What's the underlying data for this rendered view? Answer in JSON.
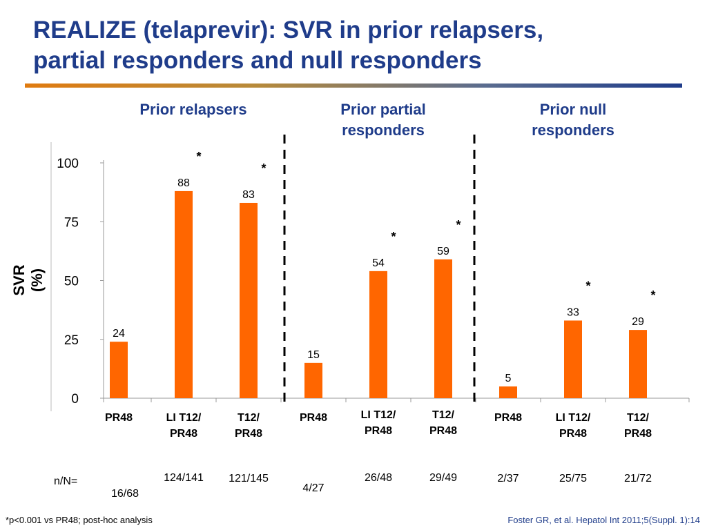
{
  "title": {
    "line1": "REALIZE (telaprevir): SVR in prior relapsers,",
    "line2": "partial responders and null responders"
  },
  "colors": {
    "title": "#1f3c8a",
    "bar": "#ff6600",
    "divider": "#000000"
  },
  "groups": [
    {
      "label": "Prior relapsers"
    },
    {
      "label_line1": "Prior partial",
      "label_line2": "responders"
    },
    {
      "label_line1": "Prior null",
      "label_line2": "responders"
    }
  ],
  "chart_data": {
    "type": "bar",
    "ylabel": "SVR (%)",
    "ylim": [
      0,
      100
    ],
    "yticks": [
      0,
      25,
      50,
      75,
      100
    ],
    "grid": false,
    "categories": [
      {
        "line1": "PR48",
        "line2": ""
      },
      {
        "line1": "LI T12/",
        "line2": "PR48"
      },
      {
        "line1": "T12/",
        "line2": "PR48"
      },
      {
        "line1": "PR48",
        "line2": ""
      },
      {
        "line1": "LI T12/",
        "line2": "PR48"
      },
      {
        "line1": "T12/",
        "line2": "PR48"
      },
      {
        "line1": "PR48",
        "line2": ""
      },
      {
        "line1": "LI T12/",
        "line2": "PR48"
      },
      {
        "line1": "T12/",
        "line2": "PR48"
      }
    ],
    "values": [
      24,
      88,
      83,
      15,
      54,
      59,
      5,
      33,
      29
    ],
    "significant": [
      false,
      true,
      true,
      false,
      true,
      true,
      false,
      true,
      true
    ],
    "significance_marker": "*",
    "n_over_N": [
      "16/68",
      "124/141",
      "121/145",
      "4/27",
      "26/48",
      "29/49",
      "2/37",
      "25/75",
      "21/72"
    ]
  },
  "nn_label": "n/N=",
  "footnote": "*p<0.001 vs PR48; post-hoc analysis",
  "citation": "Foster GR, et al. Hepatol Int 2011;5(Suppl. 1):14"
}
